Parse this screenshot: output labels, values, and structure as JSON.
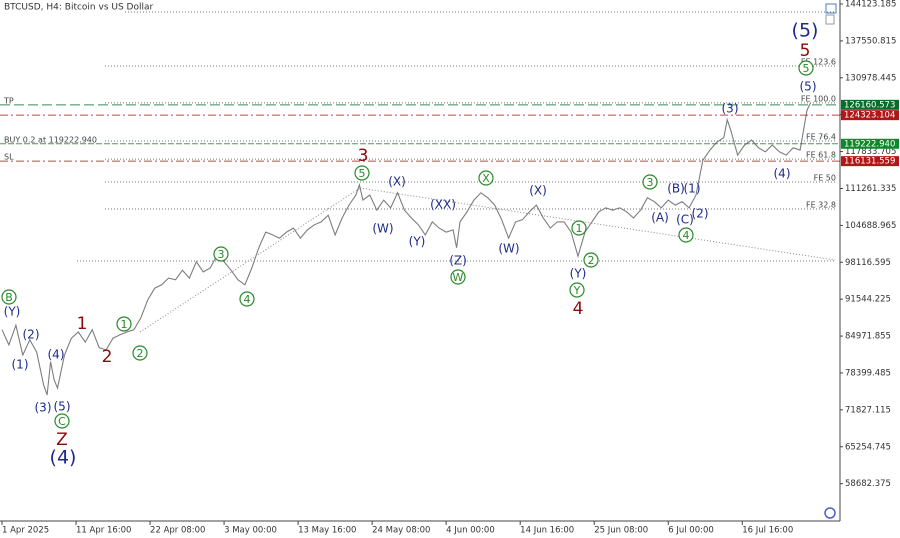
{
  "chart_data": {
    "type": "line",
    "title": "BTCUSD, H4:  Bitcoin vs US Dollar",
    "color": "#7d7d7d",
    "x": [
      "1 Apr 00:00",
      "2 Apr 00:00",
      "3 Apr 00:00",
      "4 Apr 00:00",
      "5 Apr 00:00",
      "6 Apr 00:00",
      "7 Apr 00:00",
      "7 Apr 12:00",
      "8 Apr 00:00",
      "8 Apr 12:00",
      "9 Apr 00:00",
      "10 Apr 00:00",
      "11 Apr 00:00",
      "12 Apr 00:00",
      "13 Apr 00:00",
      "14 Apr 00:00",
      "15 Apr 00:00",
      "16 Apr 00:00",
      "17 Apr 00:00",
      "18 Apr 00:00",
      "19 Apr 00:00",
      "20 Apr 00:00",
      "21 Apr 00:00",
      "22 Apr 00:00",
      "23 Apr 00:00",
      "24 Apr 00:00",
      "25 Apr 00:00",
      "26 Apr 00:00",
      "27 Apr 00:00",
      "28 Apr 00:00",
      "29 Apr 00:00",
      "30 Apr 00:00",
      "1 May 00:00",
      "2 May 00:00",
      "3 May 00:00",
      "4 May 00:00",
      "5 May 00:00",
      "6 May 00:00",
      "7 May 00:00",
      "8 May 00:00",
      "9 May 00:00",
      "10 May 00:00",
      "11 May 00:00",
      "12 May 00:00",
      "13 May 00:00",
      "14 May 00:00",
      "15 May 00:00",
      "16 May 00:00",
      "17 May 00:00",
      "18 May 00:00",
      "19 May 00:00",
      "20 May 00:00",
      "21 May 00:00",
      "22 May 00:00",
      "22 May 12:00",
      "23 May 00:00",
      "24 May 00:00",
      "25 May 00:00",
      "26 May 00:00",
      "27 May 00:00",
      "28 May 00:00",
      "29 May 00:00",
      "30 May 00:00",
      "31 May 00:00",
      "1 Jun 00:00",
      "2 Jun 00:00",
      "3 Jun 00:00",
      "4 Jun 00:00",
      "5 Jun 00:00",
      "5 Jun 12:00",
      "6 Jun 00:00",
      "7 Jun 00:00",
      "8 Jun 00:00",
      "9 Jun 00:00",
      "10 Jun 00:00",
      "11 Jun 00:00",
      "12 Jun 00:00",
      "13 Jun 00:00",
      "14 Jun 00:00",
      "15 Jun 00:00",
      "16 Jun 00:00",
      "17 Jun 00:00",
      "18 Jun 00:00",
      "19 Jun 00:00",
      "20 Jun 00:00",
      "21 Jun 00:00",
      "22 Jun 00:00",
      "23 Jun 00:00",
      "24 Jun 00:00",
      "25 Jun 00:00",
      "26 Jun 00:00",
      "27 Jun 00:00",
      "28 Jun 00:00",
      "29 Jun 00:00",
      "30 Jun 00:00",
      "1 Jul 00:00",
      "2 Jul 00:00",
      "3 Jul 00:00",
      "4 Jul 00:00",
      "5 Jul 00:00",
      "6 Jul 00:00",
      "7 Jul 00:00",
      "8 Jul 00:00",
      "9 Jul 00:00",
      "10 Jul 00:00",
      "11 Jul 00:00",
      "12 Jul 00:00",
      "13 Jul 00:00",
      "14 Jul 00:00",
      "14 Jul 12:00",
      "15 Jul 00:00",
      "16 Jul 00:00",
      "17 Jul 00:00",
      "18 Jul 00:00",
      "19 Jul 00:00",
      "20 Jul 00:00",
      "21 Jul 00:00",
      "22 Jul 00:00",
      "23 Jul 00:00",
      "24 Jul 00:00",
      "25 Jul 00:00",
      "26 Jul 00:00",
      "26 Jul 12:00"
    ],
    "values": [
      86100,
      83400,
      86900,
      81600,
      84300,
      82100,
      76300,
      74500,
      80400,
      77200,
      75700,
      81600,
      84600,
      85700,
      83900,
      86100,
      82900,
      82500,
      84600,
      85200,
      85700,
      86100,
      88200,
      91400,
      93500,
      94100,
      95300,
      95000,
      96700,
      95300,
      98200,
      96400,
      97100,
      99400,
      98200,
      96700,
      95000,
      94100,
      97100,
      100700,
      103500,
      103000,
      102400,
      103500,
      104200,
      102400,
      103900,
      104800,
      105300,
      106500,
      103000,
      106000,
      108300,
      110100,
      111900,
      109200,
      110100,
      107400,
      109200,
      107800,
      110500,
      107400,
      106000,
      104800,
      103000,
      105300,
      104200,
      103500,
      103900,
      100700,
      105300,
      107100,
      109200,
      110500,
      109600,
      108300,
      105700,
      102400,
      105300,
      105700,
      107100,
      108300,
      106000,
      104200,
      105300,
      105300,
      103500,
      99200,
      103500,
      105300,
      107100,
      107800,
      107400,
      107800,
      107100,
      106000,
      107400,
      109600,
      108900,
      107800,
      109200,
      108300,
      108900,
      107800,
      110100,
      116300,
      118100,
      119500,
      120300,
      123500,
      121700,
      117200,
      119000,
      119900,
      118500,
      117800,
      119000,
      117800,
      117200,
      118500,
      118100,
      125200,
      126500
    ],
    "xticks": [
      "1 Apr 2025",
      "11 Apr 16:00",
      "22 Apr 08:00",
      "3 May 00:00",
      "13 May 16:00",
      "24 May 08:00",
      "4 Jun 00:00",
      "14 Jun 16:00",
      "25 Jun 08:00",
      "6 Jul 00:00",
      "16 Jul 16:00"
    ],
    "ylim": [
      52030,
      144835
    ],
    "yticks": [
      144123.185,
      137550.815,
      130978.445,
      124406.075,
      117833.705,
      111261.335,
      104688.965,
      98116.595,
      91544.225,
      84971.855,
      78399.485,
      71827.115,
      65254.745,
      58682.375
    ],
    "levels": [
      {
        "name": "TP",
        "price": 126160.573,
        "color": "#0b6b2b",
        "dash": "10 4"
      },
      {
        "price": 124323.104,
        "color": "#b01818",
        "dash": "8 3 2 3"
      },
      {
        "name": "BUY 0.2 at 119222.940",
        "price": 119222.94,
        "price_label": "119222.940",
        "color": "#0b8a2b",
        "dash": "6 2"
      },
      {
        "name": "SL",
        "price": 116131.559,
        "color": "#b01818",
        "dash": "8 3 2 3"
      }
    ],
    "fib_levels": [
      {
        "value": 142700
      },
      {
        "label": "FE 123.6",
        "value": 133080
      },
      {
        "label": "FE 100.0",
        "value": 126500
      },
      {
        "label": "FE 76.4",
        "value": 119720
      },
      {
        "label": "FE 61.8",
        "value": 116500
      },
      {
        "label": "FE 50",
        "value": 112420
      },
      {
        "label": "FE 32.8",
        "value": 107610
      },
      {
        "value": 98350
      }
    ],
    "annotations": [
      {
        "text": "B",
        "style": "circle"
      },
      {
        "text": "(Y)",
        "style": "paren"
      },
      {
        "text": "(2)",
        "style": "paren"
      },
      {
        "text": "(1)",
        "style": "paren"
      },
      {
        "text": "(4)",
        "style": "paren"
      },
      {
        "text": "(3)",
        "style": "paren"
      },
      {
        "text": "(5)",
        "style": "paren"
      },
      {
        "text": "C",
        "style": "circle"
      },
      {
        "text": "Z",
        "style": "red"
      },
      {
        "text": "(4)",
        "style": "big"
      },
      {
        "text": "1",
        "style": "red"
      },
      {
        "text": "2",
        "style": "red"
      },
      {
        "text": "1",
        "style": "circle"
      },
      {
        "text": "2",
        "style": "circle"
      },
      {
        "text": "3",
        "style": "circle"
      },
      {
        "text": "4",
        "style": "circle"
      },
      {
        "text": "3",
        "style": "red"
      },
      {
        "text": "5",
        "style": "circle"
      },
      {
        "text": "(X)",
        "style": "paren"
      },
      {
        "text": "(W)",
        "style": "paren"
      },
      {
        "text": "(XX)",
        "style": "paren"
      },
      {
        "text": "(Y)",
        "style": "paren"
      },
      {
        "text": "(Z)",
        "style": "paren"
      },
      {
        "text": "W",
        "style": "circle"
      },
      {
        "text": "X",
        "style": "circle"
      },
      {
        "text": "(X)",
        "style": "paren"
      },
      {
        "text": "(W)",
        "style": "paren"
      },
      {
        "text": "1",
        "style": "circle"
      },
      {
        "text": "(Y)",
        "style": "paren"
      },
      {
        "text": "2",
        "style": "circle"
      },
      {
        "text": "Y",
        "style": "circle"
      },
      {
        "text": "4",
        "style": "red"
      },
      {
        "text": "3",
        "style": "circle"
      },
      {
        "text": "(B)",
        "style": "paren"
      },
      {
        "text": "(1)",
        "style": "paren"
      },
      {
        "text": "(A)",
        "style": "paren"
      },
      {
        "text": "(C)",
        "style": "paren"
      },
      {
        "text": "(2)",
        "style": "paren"
      },
      {
        "text": "4",
        "style": "circle"
      },
      {
        "text": "(3)",
        "style": "paren"
      },
      {
        "text": "(4)",
        "style": "paren"
      },
      {
        "text": "(5)",
        "style": "big"
      },
      {
        "text": "5",
        "style": "red"
      },
      {
        "text": "5",
        "style": "circle"
      },
      {
        "text": "(5)",
        "style": "paren"
      }
    ]
  }
}
